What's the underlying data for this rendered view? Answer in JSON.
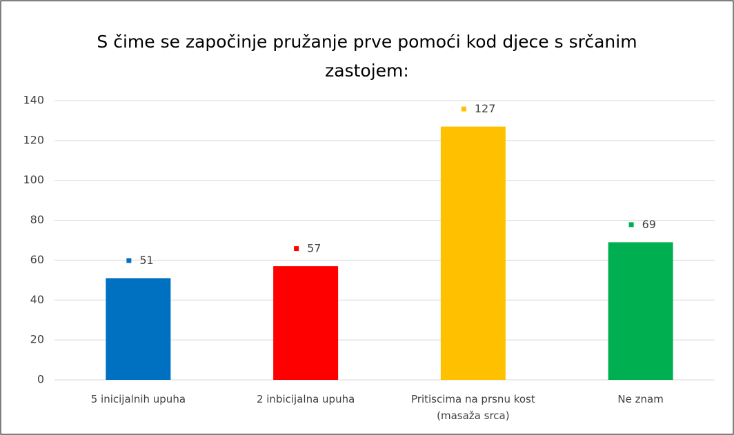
{
  "chart_data": {
    "type": "bar",
    "title": "S čime se započinje pružanje prve pomoći kod djece s srčanim zastojem:",
    "categories": [
      "5 inicijalnih upuha",
      "2 inbicijalna upuha",
      "Pritiscima na prsnu kost (masaža srca)",
      "Ne znam"
    ],
    "values": [
      51,
      57,
      127,
      69
    ],
    "colors": [
      "#0070c0",
      "#ff0000",
      "#ffc000",
      "#00b050"
    ],
    "ylim": [
      0,
      140
    ],
    "yticks": [
      0,
      20,
      40,
      60,
      80,
      100,
      120,
      140
    ],
    "grid": true
  }
}
